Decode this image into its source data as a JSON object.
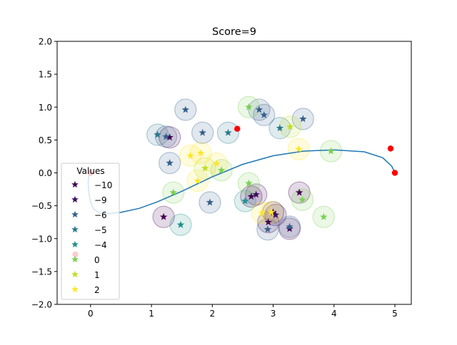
{
  "chart_data": {
    "type": "scatter",
    "title": "Score=9",
    "xlabel": "",
    "ylabel": "",
    "xlim": [
      -0.55,
      5.27
    ],
    "ylim": [
      -2.0,
      2.0
    ],
    "x_ticks": [
      0,
      1,
      2,
      3,
      4,
      5
    ],
    "x_tick_labels": [
      "0",
      "1",
      "2",
      "3",
      "4",
      "5"
    ],
    "y_ticks": [
      2.0,
      1.5,
      1.0,
      0.5,
      0.0,
      -0.5,
      -1.0,
      -1.5,
      -2.0
    ],
    "y_tick_labels": [
      "2.0",
      "1.5",
      "1.0",
      "0.5",
      "0.0",
      "−0.5",
      "−1.0",
      "−1.5",
      "−2.0"
    ],
    "grid": false,
    "legend": {
      "title": "Values",
      "placement": "lower-left",
      "entries": [
        {
          "label": "−10",
          "value": -10,
          "color": "#440154"
        },
        {
          "label": "−9",
          "value": -9,
          "color": "#3e0f5e"
        },
        {
          "label": "−6",
          "value": -6,
          "color": "#355f8d"
        },
        {
          "label": "−5",
          "value": -5,
          "color": "#2a788e"
        },
        {
          "label": "−4",
          "value": -4,
          "color": "#21918c"
        },
        {
          "label": "0",
          "value": 0,
          "color": "#7ad151"
        },
        {
          "label": "1",
          "value": 1,
          "color": "#bddf26"
        },
        {
          "label": "2",
          "value": 2,
          "color": "#fde725"
        }
      ]
    },
    "points": [
      {
        "x": 1.3,
        "y": 0.54,
        "v": -10
      },
      {
        "x": 1.2,
        "y": -0.67,
        "v": -10
      },
      {
        "x": 2.64,
        "y": -0.36,
        "v": -10
      },
      {
        "x": 2.92,
        "y": -0.75,
        "v": -10
      },
      {
        "x": 3.43,
        "y": -0.3,
        "v": -10
      },
      {
        "x": 3.27,
        "y": -0.85,
        "v": -10
      },
      {
        "x": 3.0,
        "y": -0.6,
        "v": -9
      },
      {
        "x": 3.04,
        "y": -0.64,
        "v": -9
      },
      {
        "x": 2.72,
        "y": -0.33,
        "v": -9
      },
      {
        "x": 1.56,
        "y": 0.96,
        "v": -6
      },
      {
        "x": 1.3,
        "y": 0.15,
        "v": -6
      },
      {
        "x": 1.24,
        "y": 0.55,
        "v": -6
      },
      {
        "x": 1.84,
        "y": 0.61,
        "v": -6
      },
      {
        "x": 2.85,
        "y": 0.88,
        "v": -6
      },
      {
        "x": 2.77,
        "y": 0.96,
        "v": -6
      },
      {
        "x": 3.49,
        "y": 0.82,
        "v": -6
      },
      {
        "x": 1.96,
        "y": -0.45,
        "v": -6
      },
      {
        "x": 2.91,
        "y": -0.86,
        "v": -6
      },
      {
        "x": 3.27,
        "y": -0.82,
        "v": -6
      },
      {
        "x": 1.1,
        "y": 0.58,
        "v": -5
      },
      {
        "x": 2.26,
        "y": 0.61,
        "v": -5
      },
      {
        "x": 3.11,
        "y": 0.68,
        "v": -5
      },
      {
        "x": 1.48,
        "y": -0.79,
        "v": -4
      },
      {
        "x": 2.54,
        "y": -0.43,
        "v": -4
      },
      {
        "x": 2.6,
        "y": 1.0,
        "v": 0
      },
      {
        "x": 2.6,
        "y": -0.16,
        "v": 0
      },
      {
        "x": 2.15,
        "y": 0.04,
        "v": 0
      },
      {
        "x": 1.36,
        "y": -0.3,
        "v": 0
      },
      {
        "x": 3.95,
        "y": 0.33,
        "v": 0
      },
      {
        "x": 3.83,
        "y": -0.67,
        "v": 0
      },
      {
        "x": 3.48,
        "y": -0.41,
        "v": 0
      },
      {
        "x": 1.88,
        "y": 0.07,
        "v": 1
      },
      {
        "x": 3.28,
        "y": 0.7,
        "v": 1
      },
      {
        "x": 1.76,
        "y": -0.12,
        "v": 2
      },
      {
        "x": 1.64,
        "y": 0.26,
        "v": 2
      },
      {
        "x": 1.81,
        "y": 0.3,
        "v": 2
      },
      {
        "x": 2.07,
        "y": 0.14,
        "v": 2
      },
      {
        "x": 3.42,
        "y": 0.36,
        "v": 2
      },
      {
        "x": 2.82,
        "y": -0.61,
        "v": 2
      },
      {
        "x": 2.97,
        "y": -0.6,
        "v": 2
      }
    ],
    "red_points": [
      {
        "x": 0.0,
        "y": 0.0
      },
      {
        "x": 2.41,
        "y": 0.67
      },
      {
        "x": 4.93,
        "y": 0.37
      },
      {
        "x": 5.0,
        "y": 0.0
      },
      {
        "x": -0.25,
        "y": -1.24
      }
    ],
    "curve": {
      "color": "#1f77b4",
      "points": [
        [
          0.0,
          0.0
        ],
        [
          -0.03,
          -0.05
        ],
        [
          -0.04,
          -0.15
        ],
        [
          -0.03,
          -0.3
        ],
        [
          0.0,
          -0.45
        ],
        [
          0.05,
          -0.55
        ],
        [
          0.15,
          -0.61
        ],
        [
          0.3,
          -0.62
        ],
        [
          0.5,
          -0.6
        ],
        [
          0.8,
          -0.54
        ],
        [
          1.1,
          -0.44
        ],
        [
          1.5,
          -0.28
        ],
        [
          2.0,
          -0.06
        ],
        [
          2.5,
          0.13
        ],
        [
          3.0,
          0.26
        ],
        [
          3.5,
          0.33
        ],
        [
          4.0,
          0.35
        ],
        [
          4.5,
          0.32
        ],
        [
          4.8,
          0.23
        ],
        [
          4.95,
          0.1
        ],
        [
          5.0,
          0.0
        ]
      ]
    },
    "halo_color_colormap": "viridis"
  }
}
